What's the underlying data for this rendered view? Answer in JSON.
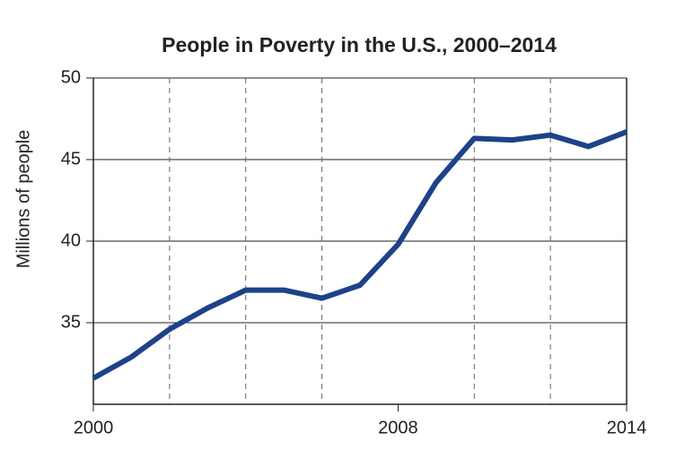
{
  "chart_data": {
    "type": "line",
    "title": "People in Poverty in the U.S., 2000–2014",
    "y_label": "Millions of people",
    "x": [
      2000,
      2001,
      2002,
      2003,
      2004,
      2005,
      2006,
      2007,
      2008,
      2009,
      2010,
      2011,
      2012,
      2013,
      2014
    ],
    "series": [
      {
        "name": "People in poverty",
        "color": "#1d4289",
        "values": [
          31.6,
          32.9,
          34.6,
          35.9,
          37.0,
          37.0,
          36.5,
          37.3,
          39.8,
          43.6,
          46.3,
          46.2,
          46.5,
          45.8,
          46.7
        ]
      }
    ],
    "xlim": [
      2000,
      2014
    ],
    "xticks": [
      2000,
      2008,
      2014
    ],
    "xgrid": [
      2002,
      2004,
      2006,
      2010,
      2012
    ],
    "ylim": [
      30,
      50
    ],
    "yticks": [
      35,
      40,
      45,
      50
    ],
    "grid": true
  }
}
